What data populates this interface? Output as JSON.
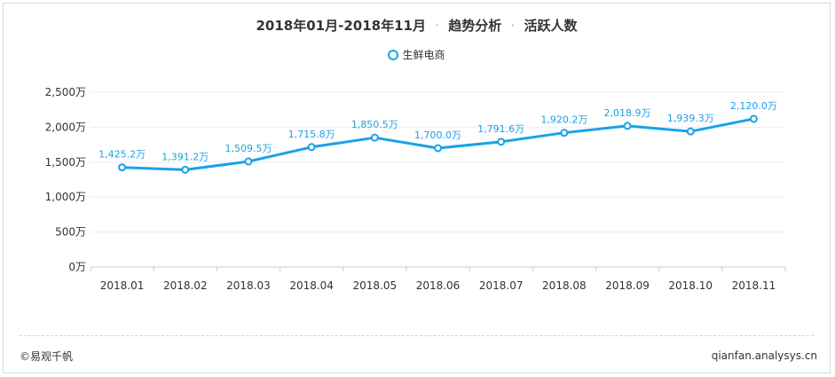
{
  "title": {
    "period": "2018年01月-2018年11月",
    "section": "趋势分析",
    "metric": "活跃人数",
    "separator": "·"
  },
  "footer": {
    "copyright": "©易观千帆",
    "site": "qianfan.analysys.cn"
  },
  "colors": {
    "series": "#1aa1e8"
  },
  "chart_data": {
    "type": "line",
    "categories": [
      "2018.01",
      "2018.02",
      "2018.03",
      "2018.04",
      "2018.05",
      "2018.06",
      "2018.07",
      "2018.08",
      "2018.09",
      "2018.10",
      "2018.11"
    ],
    "series": [
      {
        "name": "生鲜电商",
        "values": [
          1425.2,
          1391.2,
          1509.5,
          1715.8,
          1850.5,
          1700.0,
          1791.6,
          1920.2,
          2018.9,
          1939.3,
          2120.0
        ],
        "labels": [
          "1,425.2万",
          "1,391.2万",
          "1,509.5万",
          "1,715.8万",
          "1,850.5万",
          "1,700.0万",
          "1,791.6万",
          "1,920.2万",
          "2,018.9万",
          "1,939.3万",
          "2,120.0万"
        ]
      }
    ],
    "ylim": [
      0,
      2500
    ],
    "yticks": [
      0,
      500,
      1000,
      1500,
      2000,
      2500
    ],
    "ytick_labels": [
      "0万",
      "500万",
      "1,000万",
      "1,500万",
      "2,000万",
      "2,500万"
    ],
    "grid": true,
    "legend_position": "top-center"
  }
}
